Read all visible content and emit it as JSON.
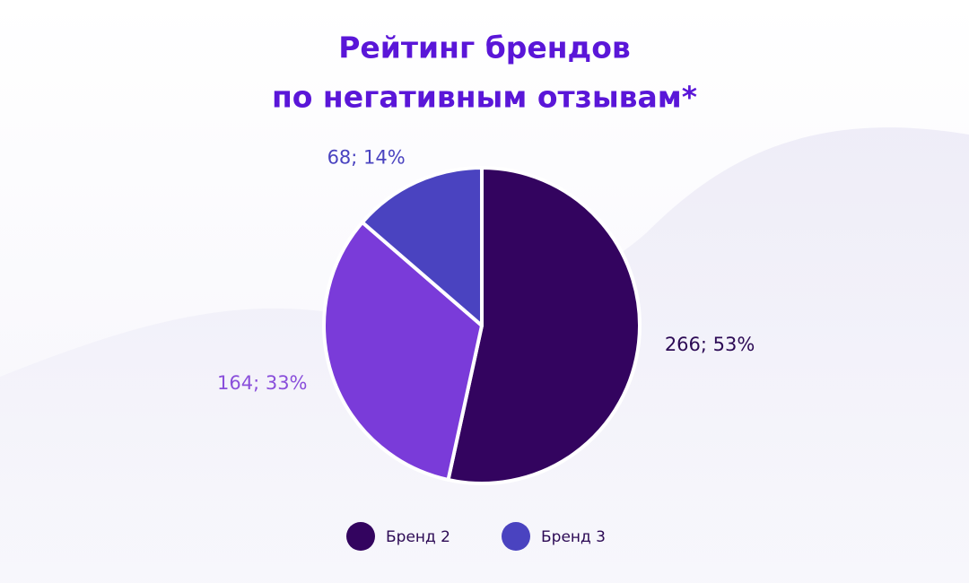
{
  "chart_data": {
    "type": "pie",
    "title": [
      "Рейтинг брендов",
      "по негативным отзывам*"
    ],
    "categories": [
      "Бренд 2",
      null,
      "Бренд 3"
    ],
    "values": [
      266,
      164,
      68
    ],
    "value_labels": [
      "266; 53%",
      "164; 33%",
      "68; 14%"
    ],
    "colors": [
      "#33045f",
      "#7a3bd9",
      "#4a43c0"
    ],
    "label_colors": [
      "#2c0a55",
      "#8a4fdb",
      "#4a43c0"
    ]
  }
}
